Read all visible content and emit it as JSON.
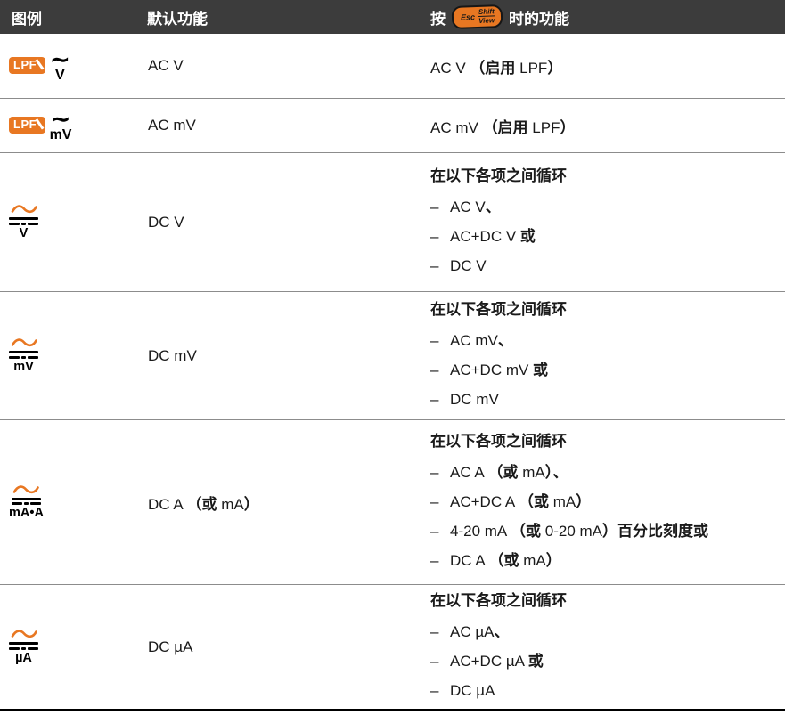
{
  "ui": {
    "list_marker": "–",
    "accent_orange": "#e87722",
    "header_bg": "#3c3c3c",
    "divider_color": "#8c8c8c"
  },
  "icons": {
    "tilde": "∼",
    "wave_icon": "ac-sine-wave",
    "dc_bars": "dc-solid-dashed-bars"
  },
  "header": {
    "col1": "图例",
    "col2": "默认功能",
    "col3_prefix": "按",
    "col3_suffix": "时的功能",
    "button": {
      "esc": "Esc",
      "shift": "Shift",
      "view": "View"
    }
  },
  "rows": [
    {
      "icon": {
        "type": "lpf",
        "badge": "LPF",
        "unit": "V"
      },
      "default": "AC V",
      "shifted": {
        "single": "AC V （启用 LPF）"
      }
    },
    {
      "icon": {
        "type": "lpf",
        "badge": "LPF",
        "unit": "mV"
      },
      "default": "AC mV",
      "shifted": {
        "single": "AC mV （启用 LPF）"
      }
    },
    {
      "icon": {
        "type": "acdc",
        "unit": "V"
      },
      "default": "DC V",
      "shifted": {
        "heading": "在以下各项之间循环",
        "items": [
          "AC V、",
          "AC+DC V 或",
          "DC V"
        ]
      }
    },
    {
      "icon": {
        "type": "acdc",
        "unit": "mV"
      },
      "default": "DC mV",
      "shifted": {
        "heading": "在以下各项之间循环",
        "items": [
          "AC mV、",
          "AC+DC mV 或",
          "DC mV"
        ]
      }
    },
    {
      "icon": {
        "type": "acdc",
        "unit": "mA•A"
      },
      "default": "DC A （或 mA）",
      "shifted": {
        "heading": "在以下各项之间循环",
        "items": [
          "AC A （或 mA）、",
          "AC+DC A （或 mA）",
          "4-20 mA （或 0-20 mA）百分比刻度或",
          "DC A （或 mA）"
        ]
      }
    },
    {
      "icon": {
        "type": "acdc",
        "unit": "µA"
      },
      "default": "DC µA",
      "shifted": {
        "heading": "在以下各项之间循环",
        "items": [
          "AC µA、",
          "AC+DC µA 或",
          "DC µA"
        ]
      }
    }
  ]
}
